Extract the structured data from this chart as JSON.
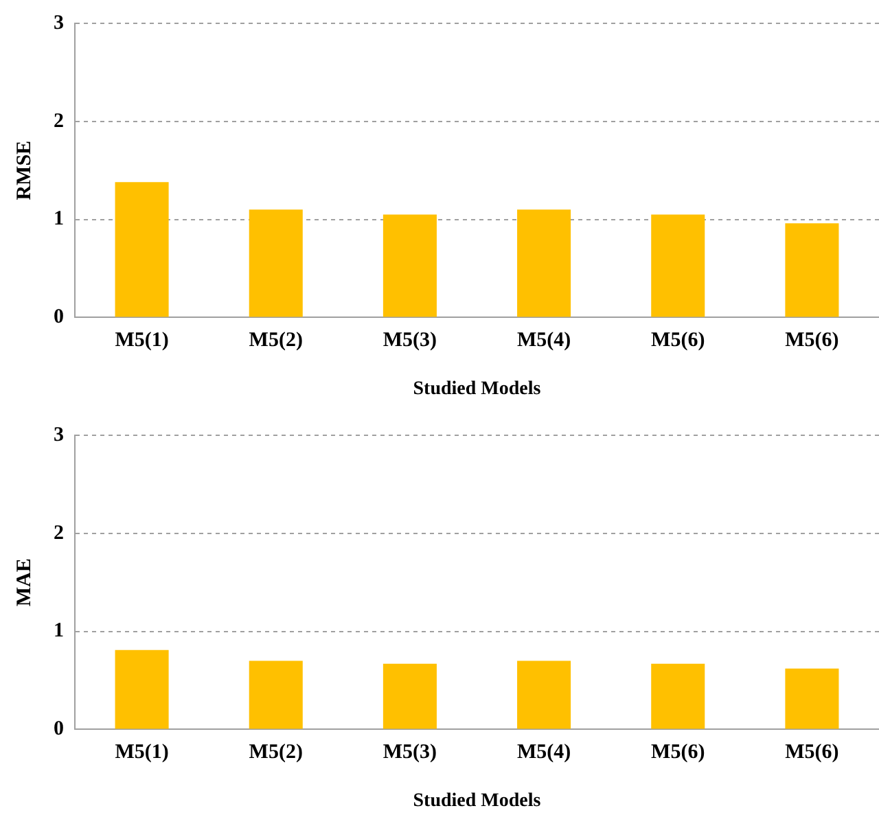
{
  "chart_data": [
    {
      "type": "bar",
      "xlabel": "Studied Models",
      "ylabel": "RMSE",
      "categories": [
        "M5(1)",
        "M5(2)",
        "M5(3)",
        "M5(4)",
        "M5(6)",
        "M5(6)"
      ],
      "values": [
        1.38,
        1.1,
        1.05,
        1.1,
        1.05,
        0.96
      ],
      "color": "#ffc000",
      "ylim": [
        0,
        3
      ],
      "yticks": [
        0,
        1,
        2,
        3
      ],
      "grid": "y",
      "line_style": "dashed"
    },
    {
      "type": "bar",
      "xlabel": "Studied Models",
      "ylabel": "MAE",
      "categories": [
        "M5(1)",
        "M5(2)",
        "M5(3)",
        "M5(4)",
        "M5(6)",
        "M5(6)"
      ],
      "values": [
        0.81,
        0.7,
        0.67,
        0.7,
        0.67,
        0.62
      ],
      "color": "#ffc000",
      "ylim": [
        0,
        3
      ],
      "yticks": [
        0,
        1,
        2,
        3
      ],
      "grid": "y",
      "line_style": "dashed"
    }
  ]
}
